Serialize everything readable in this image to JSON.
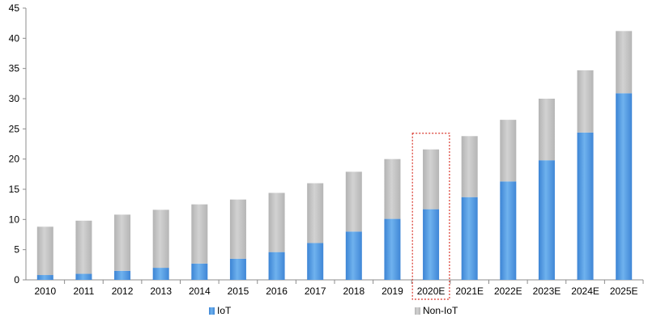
{
  "chart_data": {
    "type": "bar",
    "stacked": true,
    "categories": [
      "2010",
      "2011",
      "2012",
      "2013",
      "2014",
      "2015",
      "2016",
      "2017",
      "2018",
      "2019",
      "2020E",
      "2021E",
      "2022E",
      "2023E",
      "2024E",
      "2025E"
    ],
    "series": [
      {
        "name": "IoT",
        "color": "#4a90d9",
        "values": [
          0.8,
          1.0,
          1.5,
          2.0,
          2.7,
          3.5,
          4.6,
          6.1,
          8.0,
          10.1,
          11.7,
          13.7,
          16.3,
          19.8,
          24.4,
          30.9
        ]
      },
      {
        "name": "Non-IoT",
        "color": "#bfbfbf",
        "values": [
          8.0,
          8.8,
          9.3,
          9.6,
          9.8,
          9.8,
          9.8,
          9.9,
          9.9,
          9.9,
          9.9,
          10.1,
          10.2,
          10.2,
          10.3,
          10.3
        ]
      }
    ],
    "ylim": [
      0,
      45
    ],
    "yticks": [
      0,
      5,
      10,
      15,
      20,
      25,
      30,
      35,
      40,
      45
    ],
    "grid": false,
    "legend": "bottom",
    "highlight": {
      "category": "2020E",
      "style": "red dotted box",
      "color": "#d9362b"
    },
    "title": "",
    "xlabel": "",
    "ylabel": ""
  }
}
